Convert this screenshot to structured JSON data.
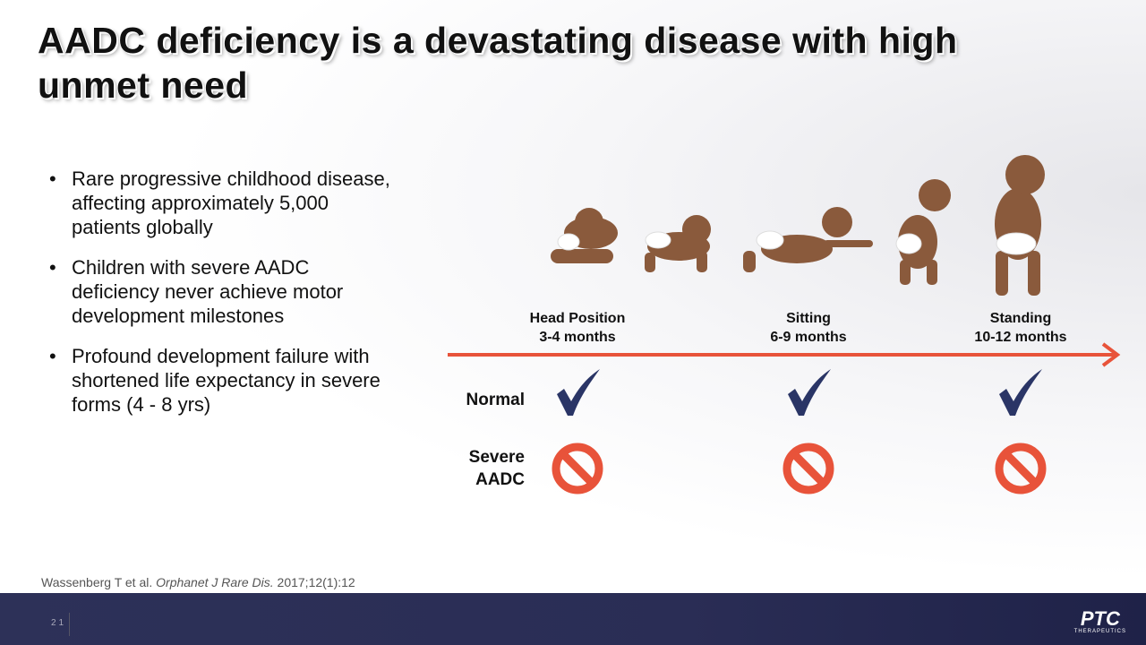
{
  "title": "AADC deficiency is a devastating disease with high unmet need",
  "bullets": [
    "Rare progressive childhood disease, affecting approximately 5,000 patients globally",
    "Children with severe AADC deficiency never achieve motor development milestones",
    "Profound development failure with shortened life expectancy in severe forms (4 - 8 yrs)"
  ],
  "milestones": [
    {
      "name": "Head Position",
      "age": "3-4 months"
    },
    {
      "name": "Sitting",
      "age": "6-9 months"
    },
    {
      "name": "Standing",
      "age": "10-12 months"
    }
  ],
  "rows": {
    "normal": "Normal",
    "severe": "Severe AADC"
  },
  "citation": {
    "authors": "Wassenberg T et al.",
    "journal": "Orphanet J Rare Dis.",
    "ref": "2017;12(1):12"
  },
  "page_number": "21",
  "logo": {
    "name": "PTC",
    "sub": "THERAPEUTICS"
  }
}
